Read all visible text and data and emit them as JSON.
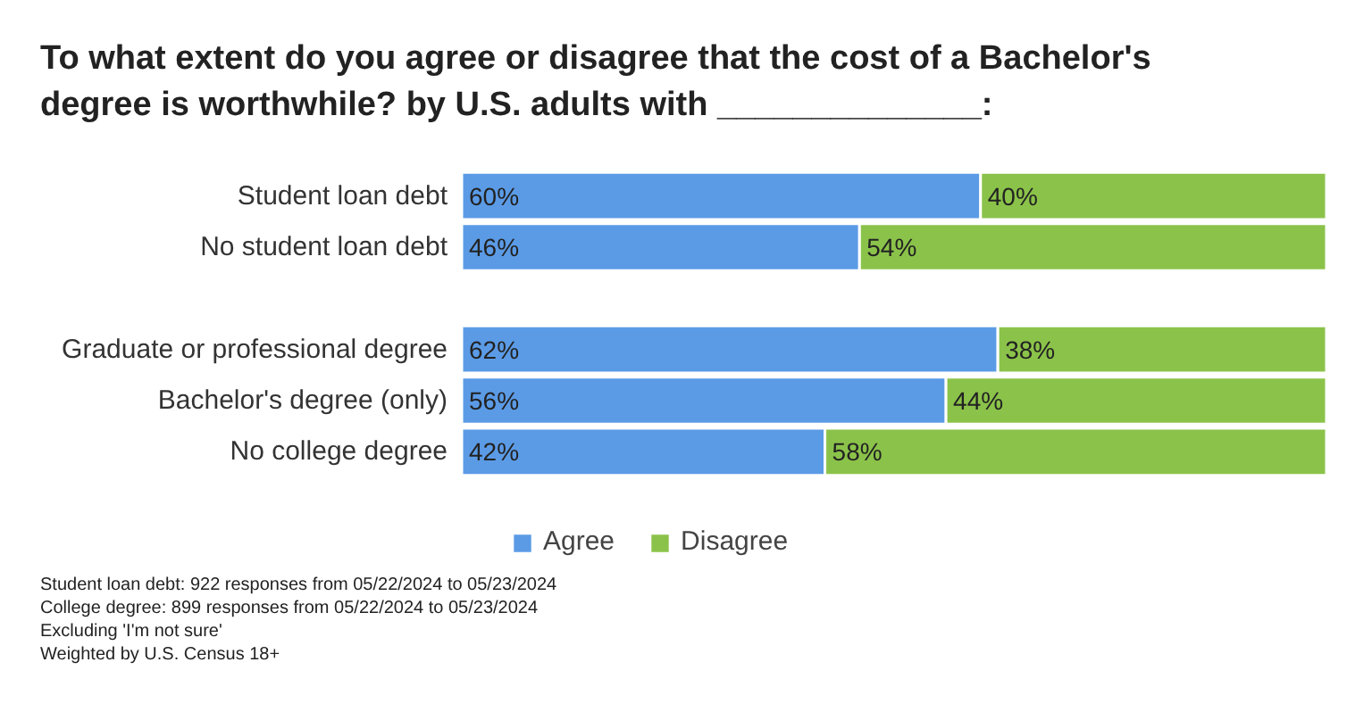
{
  "chart_data": {
    "type": "bar",
    "orientation": "horizontal",
    "stacked": true,
    "title": "To what extent do you agree or disagree that the cost of a Bachelor's degree is worthwhile? by U.S. adults with ______________:",
    "categories": [
      "Student loan debt",
      "No student loan debt",
      null,
      "Graduate or professional degree",
      "Bachelor's degree (only)",
      "No college degree"
    ],
    "series": [
      {
        "name": "Agree",
        "color": "#5b9be6",
        "values": [
          60,
          46,
          null,
          62,
          56,
          42
        ],
        "value_labels": [
          "60%",
          "46%",
          null,
          "62%",
          "56%",
          "42%"
        ]
      },
      {
        "name": "Disagree",
        "color": "#8bc34a",
        "values": [
          40,
          54,
          null,
          38,
          44,
          58
        ],
        "value_labels": [
          "40%",
          "54%",
          null,
          "38%",
          "44%",
          "58%"
        ]
      }
    ],
    "legend": "bottom",
    "grid": false,
    "annotations": [
      "Student loan debt: 922 responses from 05/22/2024 to 05/23/2024",
      "College degree: 899 responses from 05/22/2024 to 05/23/2024",
      "Excluding 'I'm not sure'",
      "Weighted by U.S. Census 18+"
    ]
  }
}
